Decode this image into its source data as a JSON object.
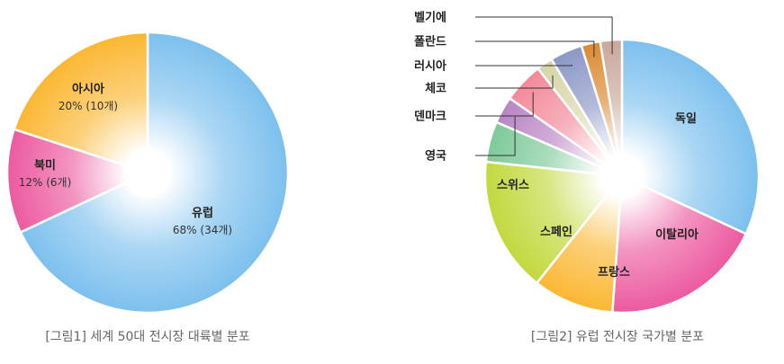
{
  "chart_data": [
    {
      "type": "pie",
      "style": "donut",
      "title": "",
      "caption": "[그림1] 세계 50대 전시장 대륙별 분포",
      "slices": [
        {
          "label": "유럽",
          "value": 34,
          "percent": 68,
          "value_text": "68% (34개)",
          "color": "#7cc0ee"
        },
        {
          "label": "북미",
          "value": 6,
          "percent": 12,
          "value_text": "12% (6개)",
          "color": "#ec5aa0"
        },
        {
          "label": "아시아",
          "value": 10,
          "percent": 20,
          "value_text": "20% (10개)",
          "color": "#fbb732"
        }
      ]
    },
    {
      "type": "pie",
      "style": "donut",
      "title": "",
      "caption": "[그림2] 유럽 전시장 국가별 분포",
      "slices": [
        {
          "label": "독일",
          "value": 10,
          "color": "#7cc0ee"
        },
        {
          "label": "이탈리아",
          "value": 6,
          "color": "#ec5aa0"
        },
        {
          "label": "프랑스",
          "value": 3,
          "color": "#fbb732"
        },
        {
          "label": "스페인",
          "value": 5,
          "color": "#c3d83d"
        },
        {
          "label": "스위스",
          "value": 1.5,
          "color": "#7ec99a"
        },
        {
          "label": "영국",
          "value": 1,
          "color": "#b985c4"
        },
        {
          "label": "덴마크",
          "value": 1.5,
          "color": "#f3899a"
        },
        {
          "label": "체코",
          "value": 0.6,
          "color": "#d6d4a6"
        },
        {
          "label": "러시아",
          "value": 1.2,
          "color": "#8b97c6"
        },
        {
          "label": "폴란드",
          "value": 0.7,
          "color": "#dc8a32"
        },
        {
          "label": "벨기에",
          "value": 0.8,
          "color": "#c9a79a"
        }
      ]
    }
  ]
}
